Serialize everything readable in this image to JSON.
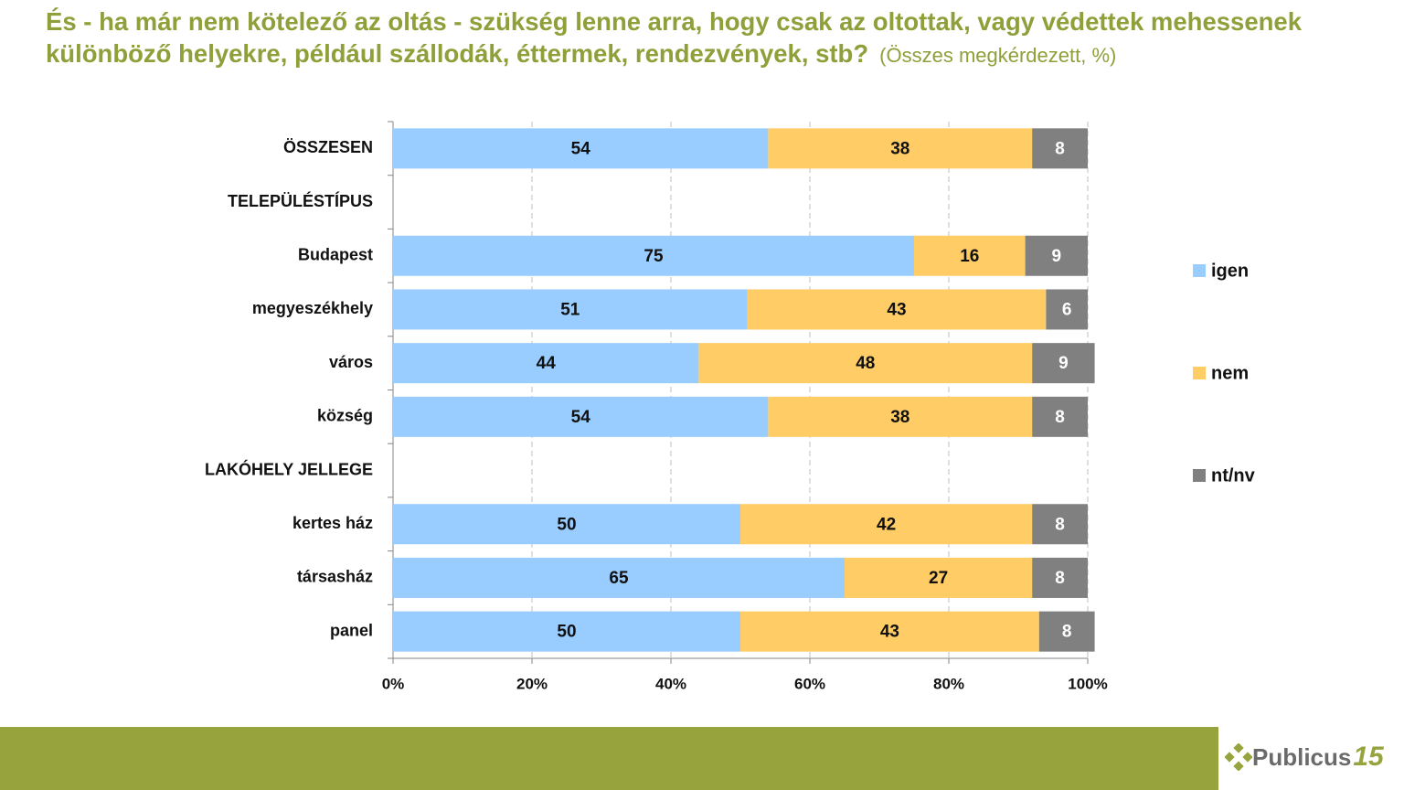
{
  "chart_data": {
    "type": "stacked-bar-horizontal",
    "title": "És - ha már nem kötelező az oltás - szükség lenne arra, hogy csak az oltottak, vagy védettek mehessenek különböző helyekre, például szállodák, éttermek, rendezvények, stb?",
    "subtitle": "(Összes megkérdezett, %)",
    "categories": [
      "ÖSSZESEN",
      "TELEPÜLÉSTÍPUS",
      "Budapest",
      "megyeszékhely",
      "város",
      "község",
      "LAKÓHELY JELLEGE",
      "kertes ház",
      "társasház",
      "panel"
    ],
    "series": [
      {
        "name": "igen",
        "color": "#99ccff",
        "label_color": "#111111",
        "values": [
          54,
          null,
          75,
          51,
          44,
          54,
          null,
          50,
          65,
          50
        ]
      },
      {
        "name": "nem",
        "color": "#ffcc66",
        "label_color": "#111111",
        "values": [
          38,
          null,
          16,
          43,
          48,
          38,
          null,
          42,
          27,
          43
        ]
      },
      {
        "name": "nt/nv",
        "color": "#808080",
        "label_color": "#ffffff",
        "values": [
          8,
          null,
          9,
          6,
          9,
          8,
          null,
          8,
          8,
          8
        ]
      }
    ],
    "xlim": [
      0,
      100
    ],
    "xticks": [
      {
        "value": 0,
        "label": "0%"
      },
      {
        "value": 20,
        "label": "20%"
      },
      {
        "value": 40,
        "label": "40%"
      },
      {
        "value": 60,
        "label": "60%"
      },
      {
        "value": 80,
        "label": "80%"
      },
      {
        "value": 100,
        "label": "100%"
      }
    ],
    "grid": true,
    "legend": "right"
  },
  "logo": {
    "name": "Publicus",
    "number": "15"
  }
}
